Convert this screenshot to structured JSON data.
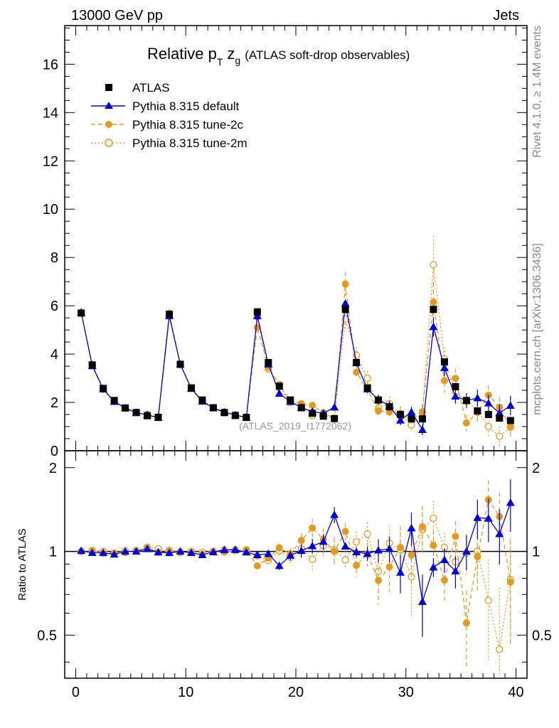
{
  "chart_data": {
    "type": "line",
    "title_main": "Relative p",
    "title_sub_T": "T",
    "title_var": "z",
    "title_sub_g": "g",
    "title_paren": "(ATLAS soft-drop observables)",
    "top_left": "13000 GeV pp",
    "top_right": "Jets",
    "side_label_top": "Rivet 4.1.0, ≥ 1.4M events",
    "side_label_bottom": "mcplots.cern.ch [arXiv:1306.3436]",
    "watermark": "(ATLAS_2019_I1772062)",
    "ratio_ylabel": "Ratio to ATLAS",
    "xlim": [
      -1,
      41
    ],
    "ylim_main": [
      0,
      17.6
    ],
    "ylim_ratio": [
      0.35,
      2.3
    ],
    "x_ticks": [
      "0",
      "10",
      "20",
      "30",
      "40"
    ],
    "y_ticks_main": [
      "0",
      "2",
      "4",
      "6",
      "8",
      "10",
      "12",
      "14",
      "16"
    ],
    "y_ticks_ratio": [
      "0.5",
      "1",
      "2"
    ],
    "x": [
      0.5,
      1.5,
      2.5,
      3.5,
      4.5,
      5.5,
      6.5,
      7.5,
      8.5,
      9.5,
      10.5,
      11.5,
      12.5,
      13.5,
      14.5,
      15.5,
      16.5,
      17.5,
      18.5,
      19.5,
      20.5,
      21.5,
      22.5,
      23.5,
      24.5,
      25.5,
      26.5,
      27.5,
      28.5,
      29.5,
      30.5,
      31.5,
      32.5,
      33.5,
      34.5,
      35.5,
      36.5,
      37.5,
      38.5,
      39.5
    ],
    "series": [
      {
        "name": "ATLAS",
        "color": "#000000",
        "marker": "square",
        "values": [
          5.7,
          3.55,
          2.58,
          2.08,
          1.77,
          1.58,
          1.45,
          1.38,
          5.65,
          3.58,
          2.6,
          2.1,
          1.78,
          1.58,
          1.46,
          1.38,
          5.75,
          3.65,
          2.67,
          2.1,
          1.78,
          1.55,
          1.43,
          1.33,
          5.85,
          3.65,
          2.6,
          2.1,
          1.82,
          1.5,
          1.32,
          1.32,
          5.85,
          3.68,
          2.65,
          2.08,
          1.65,
          1.5,
          1.35,
          1.25
        ],
        "errors": [
          0.05,
          0.05,
          0.04,
          0.04,
          0.03,
          0.03,
          0.03,
          0.03,
          0.05,
          0.05,
          0.04,
          0.04,
          0.03,
          0.03,
          0.03,
          0.03,
          0.06,
          0.06,
          0.05,
          0.05,
          0.05,
          0.05,
          0.05,
          0.05,
          0.1,
          0.08,
          0.07,
          0.07,
          0.06,
          0.06,
          0.06,
          0.06,
          0.15,
          0.12,
          0.1,
          0.1,
          0.1,
          0.1,
          0.1,
          0.1
        ]
      },
      {
        "name": "Pythia 8.315 default",
        "color": "#0000d8",
        "marker": "triangle",
        "line": "solid",
        "values": [
          5.73,
          3.51,
          2.55,
          2.03,
          1.77,
          1.58,
          1.48,
          1.37,
          5.58,
          3.58,
          2.57,
          2.04,
          1.77,
          1.6,
          1.48,
          1.37,
          5.58,
          3.58,
          2.37,
          2.03,
          1.79,
          1.62,
          1.55,
          1.8,
          6.1,
          3.63,
          2.55,
          2.12,
          1.86,
          1.26,
          1.6,
          0.87,
          5.13,
          3.43,
          2.25,
          2.08,
          2.18,
          1.97,
          1.56,
          1.87
        ],
        "errors": [
          0.05,
          0.05,
          0.04,
          0.04,
          0.03,
          0.03,
          0.03,
          0.03,
          0.06,
          0.05,
          0.04,
          0.04,
          0.03,
          0.03,
          0.03,
          0.03,
          0.08,
          0.08,
          0.08,
          0.08,
          0.1,
          0.1,
          0.1,
          0.12,
          0.15,
          0.15,
          0.15,
          0.2,
          0.2,
          0.2,
          0.22,
          0.22,
          0.4,
          0.35,
          0.3,
          0.3,
          0.35,
          0.35,
          0.35,
          0.4
        ]
      },
      {
        "name": "Pythia 8.315 tune-2c",
        "color": "#e39a1e",
        "marker": "circle",
        "line": "dashed",
        "values": [
          5.7,
          3.58,
          2.54,
          2.05,
          1.75,
          1.59,
          1.49,
          1.37,
          5.7,
          3.57,
          2.57,
          2.05,
          1.77,
          1.57,
          1.47,
          1.4,
          5.1,
          3.45,
          2.75,
          2.06,
          1.95,
          1.88,
          1.58,
          1.33,
          6.9,
          3.25,
          2.55,
          1.65,
          1.6,
          1.55,
          1.28,
          1.62,
          6.15,
          2.9,
          3.0,
          1.15,
          1.58,
          2.3,
          1.8,
          0.97
        ],
        "errors": [
          0.05,
          0.05,
          0.04,
          0.04,
          0.03,
          0.03,
          0.03,
          0.03,
          0.06,
          0.05,
          0.04,
          0.04,
          0.03,
          0.03,
          0.03,
          0.03,
          0.1,
          0.1,
          0.1,
          0.1,
          0.12,
          0.15,
          0.15,
          0.15,
          0.5,
          0.3,
          0.25,
          0.3,
          0.3,
          0.3,
          0.3,
          0.3,
          0.8,
          0.5,
          0.4,
          0.35,
          0.4,
          0.4,
          0.4,
          0.4
        ]
      },
      {
        "name": "Pythia 8.315 tune-2m",
        "color": "#e39a1e",
        "marker": "open-circle",
        "line": "dotted",
        "values": [
          5.7,
          3.55,
          2.58,
          2.05,
          1.78,
          1.59,
          1.5,
          1.41,
          5.65,
          3.55,
          2.6,
          2.08,
          1.78,
          1.6,
          1.48,
          1.38,
          5.55,
          3.38,
          2.68,
          2.0,
          1.82,
          1.45,
          1.5,
          1.35,
          5.45,
          3.95,
          3.0,
          1.78,
          1.95,
          1.52,
          1.07,
          1.58,
          7.7,
          3.8,
          2.43,
          2.05,
          1.65,
          1.0,
          0.6,
          0.99
        ],
        "errors": [
          0.05,
          0.05,
          0.04,
          0.04,
          0.03,
          0.03,
          0.03,
          0.03,
          0.06,
          0.05,
          0.04,
          0.04,
          0.03,
          0.03,
          0.03,
          0.03,
          0.1,
          0.1,
          0.1,
          0.1,
          0.12,
          0.15,
          0.15,
          0.15,
          0.4,
          0.35,
          0.3,
          0.3,
          0.3,
          0.3,
          0.3,
          0.3,
          1.2,
          0.5,
          0.4,
          0.35,
          0.4,
          0.4,
          0.4,
          0.4
        ]
      }
    ]
  }
}
